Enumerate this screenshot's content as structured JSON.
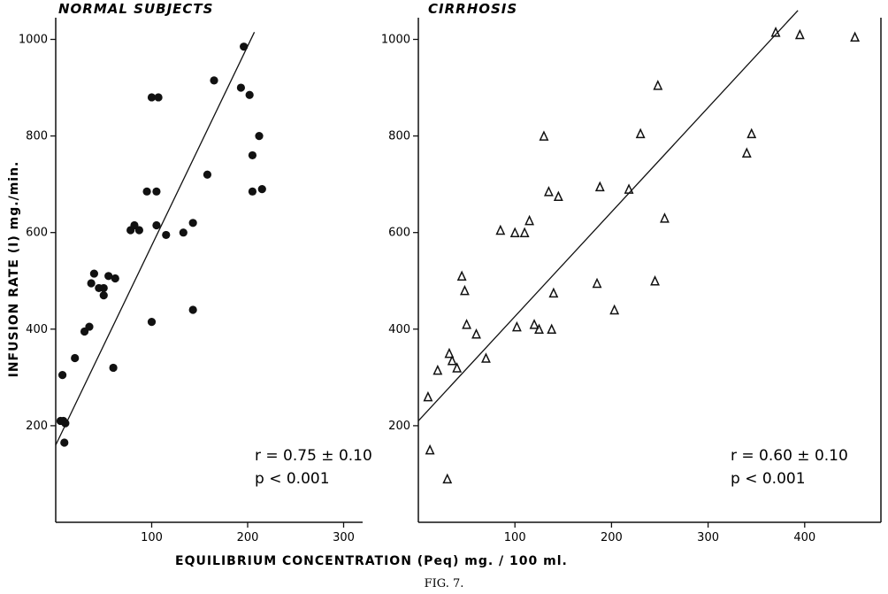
{
  "figure": {
    "caption": "FIG. 7.",
    "xlabel": "EQUILIBRIUM  CONCENTRATION (Peq)   mg. / 100 ml.",
    "ylabel": "INFUSION  RATE (I)  mg./min."
  },
  "chart_data": [
    {
      "type": "scatter",
      "title": "NORMAL SUBJECTS",
      "marker": "filled-circle",
      "xlim": [
        0,
        300
      ],
      "ylim": [
        0,
        1000
      ],
      "xticks": [
        100,
        200,
        300
      ],
      "yticks": [
        200,
        400,
        600,
        800,
        1000
      ],
      "stats": {
        "r": "r = 0.75 ± 0.10",
        "p": "p < 0.001"
      },
      "series": [
        {
          "x": [
            5,
            7,
            10,
            9,
            8,
            20,
            30,
            35,
            37,
            40,
            45,
            50,
            50,
            55,
            60,
            62,
            78,
            82,
            87,
            95,
            100,
            100,
            105,
            105,
            107,
            115,
            133,
            143,
            143,
            158,
            165,
            193,
            196,
            202,
            205,
            205,
            212,
            215
          ],
          "y": [
            210,
            305,
            205,
            165,
            210,
            340,
            395,
            405,
            495,
            515,
            485,
            470,
            485,
            510,
            320,
            505,
            605,
            615,
            605,
            685,
            415,
            880,
            615,
            685,
            880,
            595,
            600,
            440,
            620,
            720,
            915,
            900,
            985,
            885,
            760,
            685,
            800,
            690
          ]
        }
      ],
      "regression": {
        "x": [
          0,
          207
        ],
        "y": [
          160,
          1015
        ]
      }
    },
    {
      "type": "scatter",
      "title": "CIRRHOSIS",
      "marker": "open-triangle",
      "xlim": [
        0,
        480
      ],
      "ylim": [
        0,
        1000
      ],
      "xticks": [
        100,
        200,
        300,
        400
      ],
      "yticks": [
        200,
        400,
        600,
        800,
        1000
      ],
      "stats": {
        "r": "r = 0.60 ± 0.10",
        "p": "p < 0.001"
      },
      "series": [
        {
          "x": [
            10,
            12,
            20,
            30,
            32,
            35,
            40,
            45,
            48,
            50,
            60,
            70,
            85,
            100,
            102,
            110,
            115,
            120,
            125,
            130,
            135,
            138,
            140,
            145,
            185,
            188,
            203,
            218,
            230,
            245,
            248,
            255,
            340,
            345,
            370,
            395,
            452
          ],
          "y": [
            260,
            150,
            315,
            90,
            350,
            335,
            320,
            510,
            480,
            410,
            390,
            340,
            605,
            600,
            405,
            600,
            625,
            410,
            400,
            800,
            685,
            400,
            475,
            675,
            495,
            695,
            440,
            690,
            805,
            500,
            905,
            630,
            765,
            805,
            1015,
            1010,
            1005
          ]
        }
      ],
      "regression": {
        "x": [
          0,
          393
        ],
        "y": [
          210,
          1060
        ]
      }
    }
  ]
}
